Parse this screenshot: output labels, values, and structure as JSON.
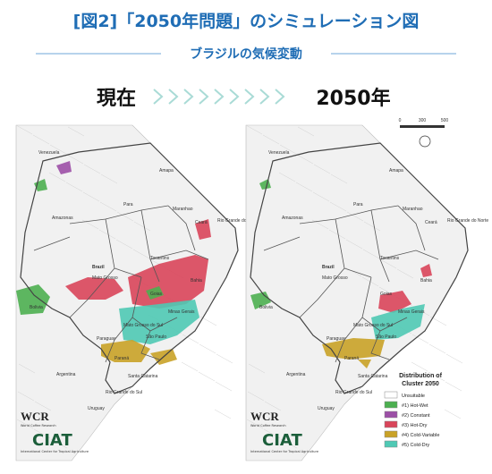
{
  "header": {
    "title": "[図2]「2050年問題」のシミュレーション図",
    "subtitle": "ブラジルの気候変動"
  },
  "panels": [
    {
      "label": "現在"
    },
    {
      "label": "2050年"
    }
  ],
  "map_labels": [
    "Venezuela",
    "Amapa",
    "Amazonas",
    "Para",
    "Maranhao",
    "Ceará",
    "Rio Grande do Norte",
    "Brazil",
    "Mato Grosso",
    "Tocantins",
    "Bahia",
    "Goias",
    "Minas Gerais",
    "Bolivia",
    "Paraguay",
    "Mato Grosso do Sul",
    "São Paulo",
    "Argentina",
    "Paraná",
    "Santa Catarina",
    "Rio Grande do Sul",
    "Uruguay"
  ],
  "scale": [
    "0",
    "300",
    "500"
  ],
  "legend": {
    "title": [
      "Distribution of",
      "Cluster 2050"
    ],
    "items": [
      {
        "label": "Unsuitable",
        "color": "#ffffff"
      },
      {
        "label": "#1) Hot-Wet",
        "color": "#4caf50"
      },
      {
        "label": "#2) Constant",
        "color": "#9c4fa6"
      },
      {
        "label": "#3) Hot-Dry",
        "color": "#d9455a"
      },
      {
        "label": "#4) Cold-Variable",
        "color": "#c9a227"
      },
      {
        "label": "#5) Cold-Dry",
        "color": "#4fc9b4"
      }
    ]
  },
  "logos": {
    "wcr": "WCR",
    "wcr_name": "World Coffee Research",
    "ciat": "CIAT",
    "ciat_name": "International Center for Tropical Agriculture"
  }
}
